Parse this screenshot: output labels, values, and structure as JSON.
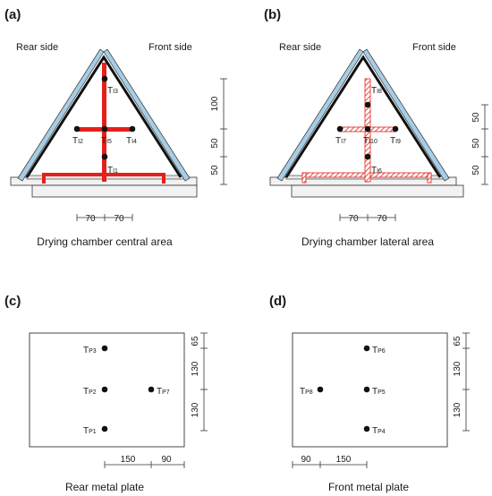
{
  "panels": {
    "a": {
      "tag": "(a)",
      "rear": "Rear side",
      "front": "Front side",
      "caption": "Drying chamber central area",
      "sensors": [
        {
          "id": "I3",
          "label": "T",
          "sub": "I3"
        },
        {
          "id": "I2",
          "label": "T",
          "sub": "I2"
        },
        {
          "id": "I5",
          "label": "T",
          "sub": "I5"
        },
        {
          "id": "I4",
          "label": "T",
          "sub": "I4"
        },
        {
          "id": "I1",
          "label": "T",
          "sub": "I1"
        }
      ],
      "vdims": [
        "100",
        "50",
        "50"
      ],
      "hdims": [
        "70",
        "70"
      ]
    },
    "b": {
      "tag": "(b)",
      "rear": "Rear side",
      "front": "Front side",
      "caption": "Drying chamber lateral area",
      "sensors": [
        {
          "id": "I8",
          "label": "T",
          "sub": "I8"
        },
        {
          "id": "I7",
          "label": "T",
          "sub": "I7"
        },
        {
          "id": "I10",
          "label": "T",
          "sub": "I10"
        },
        {
          "id": "I9",
          "label": "T",
          "sub": "I9"
        },
        {
          "id": "I6",
          "label": "T",
          "sub": "I6"
        }
      ],
      "vdims": [
        "50",
        "50",
        "50"
      ],
      "hdims": [
        "70",
        "70"
      ]
    },
    "c": {
      "tag": "(c)",
      "caption": "Rear metal plate",
      "sensors": [
        {
          "id": "P3",
          "label": "T",
          "sub": "P3"
        },
        {
          "id": "P2",
          "label": "T",
          "sub": "P2"
        },
        {
          "id": "P7",
          "label": "T",
          "sub": "P7"
        },
        {
          "id": "P1",
          "label": "T",
          "sub": "P1"
        }
      ],
      "vdims": [
        "65",
        "130",
        "130"
      ],
      "hdims": [
        "150",
        "90"
      ]
    },
    "d": {
      "tag": "(d)",
      "caption": "Front metal plate",
      "sensors": [
        {
          "id": "P6",
          "label": "T",
          "sub": "P6"
        },
        {
          "id": "P8",
          "label": "T",
          "sub": "P8"
        },
        {
          "id": "P5",
          "label": "T",
          "sub": "P5"
        },
        {
          "id": "P4",
          "label": "T",
          "sub": "P4"
        }
      ],
      "vdims": [
        "65",
        "130",
        "130"
      ],
      "hdims": [
        "90",
        "150"
      ]
    }
  },
  "colors": {
    "red": "#e3201b",
    "glass": "#a7cde6",
    "hatch": "#e3201b",
    "base": "#f2f2f2"
  }
}
